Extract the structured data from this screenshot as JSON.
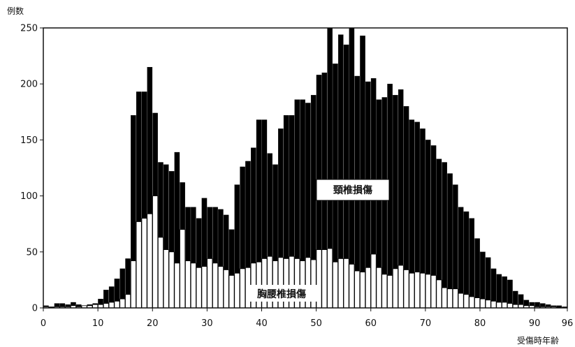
{
  "chart_data": {
    "type": "bar",
    "xlabel": "受傷時年齢",
    "ylabel": "例数",
    "xlim": [
      0,
      96
    ],
    "ylim": [
      0,
      250
    ],
    "xticks": [
      0,
      10,
      20,
      30,
      40,
      50,
      60,
      70,
      80,
      90,
      96
    ],
    "yticks": [
      0,
      50,
      100,
      150,
      200,
      250
    ],
    "grid": false,
    "annotations": [
      "頸椎損傷",
      "胸腰椎損傷"
    ],
    "x": [
      0,
      1,
      2,
      3,
      4,
      5,
      6,
      7,
      8,
      9,
      10,
      11,
      12,
      13,
      14,
      15,
      16,
      17,
      18,
      19,
      20,
      21,
      22,
      23,
      24,
      25,
      26,
      27,
      28,
      29,
      30,
      31,
      32,
      33,
      34,
      35,
      36,
      37,
      38,
      39,
      40,
      41,
      42,
      43,
      44,
      45,
      46,
      47,
      48,
      49,
      50,
      51,
      52,
      53,
      54,
      55,
      56,
      57,
      58,
      59,
      60,
      61,
      62,
      63,
      64,
      65,
      66,
      67,
      68,
      69,
      70,
      71,
      72,
      73,
      74,
      75,
      76,
      77,
      78,
      79,
      80,
      81,
      82,
      83,
      84,
      85,
      86,
      87,
      88,
      89,
      90,
      91,
      92,
      93,
      94,
      95
    ],
    "series": [
      {
        "name": "頸椎損傷",
        "color": "#000000",
        "values": [
          2,
          1,
          4,
          4,
          3,
          5,
          3,
          2,
          3,
          4,
          8,
          16,
          19,
          26,
          35,
          44,
          172,
          193,
          193,
          215,
          174,
          130,
          128,
          122,
          139,
          112,
          90,
          90,
          80,
          98,
          90,
          90,
          88,
          83,
          70,
          110,
          126,
          131,
          143,
          168,
          168,
          138,
          128,
          160,
          172,
          172,
          186,
          186,
          183,
          190,
          208,
          210,
          250,
          218,
          244,
          235,
          250,
          207,
          243,
          202,
          205,
          186,
          188,
          200,
          190,
          195,
          180,
          168,
          166,
          160,
          150,
          145,
          133,
          130,
          120,
          110,
          90,
          86,
          80,
          62,
          50,
          45,
          35,
          30,
          28,
          25,
          15,
          12,
          7,
          5,
          5,
          4,
          3,
          2,
          2,
          1
        ]
      },
      {
        "name": "胸腰椎損傷",
        "color": "#ffffff",
        "values": [
          1,
          0,
          1,
          1,
          1,
          2,
          1,
          2,
          2,
          3,
          3,
          4,
          5,
          6,
          8,
          12,
          42,
          77,
          80,
          84,
          100,
          63,
          52,
          50,
          40,
          70,
          42,
          40,
          36,
          37,
          44,
          40,
          37,
          34,
          29,
          31,
          35,
          36,
          40,
          41,
          44,
          46,
          42,
          45,
          44,
          46,
          44,
          42,
          45,
          43,
          52,
          52,
          53,
          41,
          44,
          44,
          39,
          33,
          32,
          36,
          48,
          36,
          30,
          29,
          35,
          38,
          34,
          31,
          32,
          31,
          30,
          29,
          25,
          18,
          17,
          17,
          13,
          12,
          10,
          9,
          8,
          7,
          6,
          5,
          5,
          4,
          3,
          3,
          2,
          2,
          1,
          1,
          1,
          1,
          0,
          0
        ]
      }
    ]
  }
}
